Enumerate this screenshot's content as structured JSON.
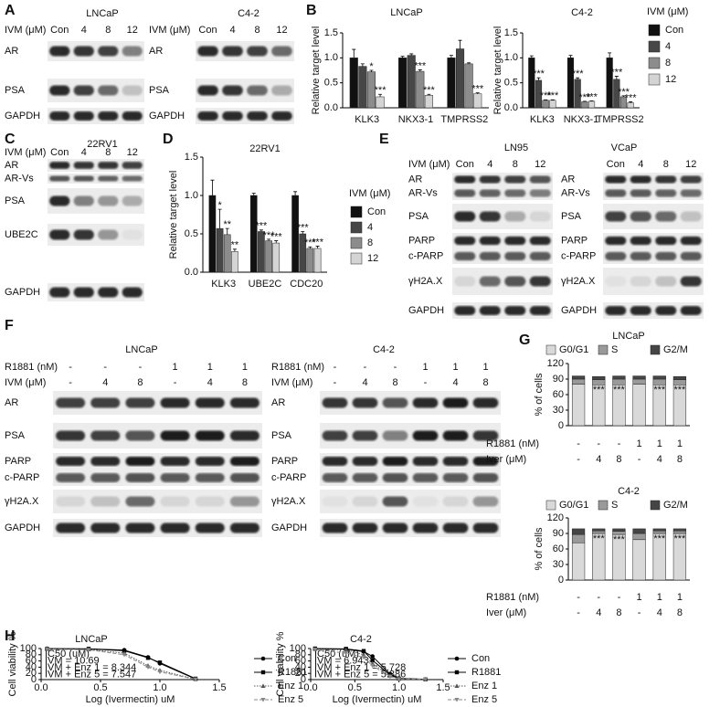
{
  "panel_labels": [
    "A",
    "B",
    "C",
    "D",
    "E",
    "F",
    "G",
    "H"
  ],
  "blots": [
    {
      "title": "LNCaP",
      "conditions": [
        {
          "label": "IVM (μM)",
          "values": [
            "Con",
            "4",
            "8",
            "12"
          ]
        }
      ],
      "bands": [
        [
          "AR"
        ],
        [
          "PSA"
        ],
        [
          "GAPDH"
        ]
      ]
    },
    {
      "title": "C4-2",
      "conditions": [
        {
          "label": "IVM (μM)",
          "values": [
            "Con",
            "4",
            "8",
            "12"
          ]
        }
      ],
      "bands": [
        [
          "AR"
        ],
        [
          "PSA"
        ],
        [
          "GAPDH"
        ]
      ]
    },
    {
      "title": "22RV1",
      "conditions": [
        {
          "label": "IVM (μM)",
          "values": [
            "Con",
            "4",
            "8",
            "12"
          ]
        }
      ],
      "bands": [
        [
          "AR"
        ],
        [
          "AR-Vs"
        ],
        [
          "PSA"
        ],
        [
          "UBE2C"
        ],
        [
          "GAPDH"
        ]
      ]
    },
    {
      "title": "LN95",
      "conditions": [
        {
          "label": "IVM (μM)",
          "values": [
            "Con",
            "4",
            "8",
            "12"
          ]
        }
      ],
      "bands": [
        [
          "AR",
          "AR-Vs"
        ],
        [
          "PSA"
        ],
        [
          "PARP",
          "c-PARP"
        ],
        [
          "γH2A.X"
        ],
        [
          "GAPDH"
        ]
      ]
    },
    {
      "title": "VCaP",
      "conditions": [
        {
          "values": [
            "Con",
            "4",
            "8",
            "12"
          ]
        }
      ],
      "bands": [
        [
          "AR",
          "AR-Vs"
        ],
        [
          "PSA"
        ],
        [
          "PARP",
          "c-PARP"
        ],
        [
          "γH2A.X"
        ],
        [
          "GAPDH"
        ]
      ]
    },
    {
      "title": "LNCaP",
      "conditions": [
        {
          "label": "R1881 (nM)",
          "values": [
            "-",
            "-",
            "-",
            "1",
            "1",
            "1"
          ]
        },
        {
          "label": "IVM (μM)",
          "values": [
            "-",
            "4",
            "8",
            "-",
            "4",
            "8"
          ]
        }
      ],
      "bands": [
        [
          "AR"
        ],
        [
          "PSA"
        ],
        [
          "PARP",
          "c-PARP"
        ],
        [
          "γH2A.X"
        ],
        [
          "GAPDH"
        ]
      ]
    },
    {
      "title": "C4-2",
      "conditions": [
        {
          "label": "R1881 (nM)",
          "values": [
            "-",
            "-",
            "-",
            "1",
            "1",
            "1"
          ]
        },
        {
          "label": "IVM (μM)",
          "values": [
            "-",
            "4",
            "8",
            "-",
            "4",
            "8"
          ]
        }
      ],
      "bands": [
        [
          "AR"
        ],
        [
          "PSA"
        ],
        [
          "PARP",
          "c-PARP"
        ],
        [
          "γH2A.X"
        ],
        [
          "GAPDH"
        ]
      ]
    }
  ],
  "chart_data": [
    {
      "type": "bar",
      "title": "LNCaP",
      "ylabel": "Relative target level",
      "categories": [
        "KLK3",
        "NKX3-1",
        "TMPRSS2"
      ],
      "ylim": [
        0,
        1.5
      ],
      "yticks": [
        {
          "value": 0,
          "label": "0.0"
        },
        0.5,
        {
          "value": 1,
          "label": "1.0"
        },
        1.5
      ],
      "legend": false,
      "series": [
        {
          "name": "Con",
          "color": "#111111",
          "values": [
            1.0,
            1.0,
            1.0
          ],
          "errors": [
            0.17,
            0.03,
            0.05
          ]
        },
        {
          "name": "4",
          "color": "#474747",
          "values": [
            0.83,
            1.05,
            1.18
          ],
          "errors": [
            0.05,
            0.03,
            0.17
          ]
        },
        {
          "name": "8",
          "color": "#8c8c8c",
          "values": [
            0.72,
            0.73,
            0.88
          ],
          "errors": [
            0.03,
            0.03,
            0.02
          ],
          "stars": [
            "*",
            "***",
            null
          ]
        },
        {
          "name": "12",
          "color": "#d4d4d4",
          "values": [
            0.22,
            0.25,
            0.28
          ],
          "errors": [
            0.05,
            0.02,
            0.02
          ],
          "stars": [
            "***",
            "***",
            "***"
          ]
        }
      ]
    },
    {
      "type": "bar",
      "title": "C4-2",
      "ylabel": "Relative target level",
      "categories": [
        "KLK3",
        "NKX3-1",
        "TMPRSS2"
      ],
      "ylim": [
        0,
        1.5
      ],
      "yticks": [
        {
          "value": 0,
          "label": "0.0"
        },
        0.5,
        {
          "value": 1,
          "label": "1.0"
        },
        1.5
      ],
      "legend": true,
      "legend_title": "IVM (μM)",
      "series": [
        {
          "name": "Con",
          "color": "#111111",
          "values": [
            1.0,
            1.0,
            1.0
          ],
          "errors": [
            0.04,
            0.05,
            0.1
          ]
        },
        {
          "name": "4",
          "color": "#474747",
          "values": [
            0.55,
            0.57,
            0.57
          ],
          "errors": [
            0.05,
            0.03,
            0.06
          ],
          "stars": [
            "***",
            "***",
            "***"
          ]
        },
        {
          "name": "8",
          "color": "#8c8c8c",
          "values": [
            0.15,
            0.12,
            0.22
          ],
          "errors": [
            0.01,
            0.01,
            0.02
          ],
          "stars": [
            "***",
            "***",
            "***"
          ]
        },
        {
          "name": "12",
          "color": "#d4d4d4",
          "values": [
            0.15,
            0.13,
            0.1
          ],
          "errors": [
            0.01,
            0.01,
            0.02
          ],
          "stars": [
            "***",
            "***",
            "***"
          ]
        }
      ]
    },
    {
      "type": "bar",
      "title": "22RV1",
      "ylabel": "Relative target level",
      "categories": [
        "KLK3",
        "UBE2C",
        "CDC20"
      ],
      "ylim": [
        0,
        1.5
      ],
      "yticks": [
        {
          "value": 0,
          "label": "0.0"
        },
        0.5,
        {
          "value": 1,
          "label": "1.0"
        },
        1.5
      ],
      "legend": true,
      "legend_title": "IVM (μM)",
      "series": [
        {
          "name": "Con",
          "color": "#111111",
          "values": [
            1.0,
            1.0,
            1.0
          ],
          "errors": [
            0.2,
            0.03,
            0.05
          ]
        },
        {
          "name": "4",
          "color": "#474747",
          "values": [
            0.57,
            0.53,
            0.5
          ],
          "errors": [
            0.25,
            0.02,
            0.03
          ],
          "stars": [
            "*",
            "***",
            "***"
          ]
        },
        {
          "name": "8",
          "color": "#8c8c8c",
          "values": [
            0.49,
            0.41,
            0.31
          ],
          "errors": [
            0.08,
            0.02,
            0.02
          ],
          "stars": [
            "**",
            "***",
            "***"
          ]
        },
        {
          "name": "12",
          "color": "#d4d4d4",
          "values": [
            0.27,
            0.38,
            0.31
          ],
          "errors": [
            0.03,
            0.03,
            0.03
          ],
          "stars": [
            "**",
            "***",
            "***"
          ]
        }
      ]
    },
    {
      "type": "stacked",
      "title": "LNCaP",
      "ylabel": "% of cells",
      "ylim": [
        0,
        120
      ],
      "yticks": [
        0,
        30,
        60,
        90,
        120
      ],
      "legend": true,
      "conditions": [
        {
          "label": "R1881 (nM)",
          "values": [
            "-",
            "-",
            "-",
            "1",
            "1",
            "1"
          ]
        },
        {
          "label": "Iver (μM)",
          "values": [
            "-",
            "4",
            "8",
            "-",
            "4",
            "8"
          ]
        }
      ],
      "bar_labels": [
        null,
        "***",
        "***",
        null,
        "***",
        "***"
      ],
      "series": [
        {
          "name": "G0/G1",
          "color": "#d9d9d9",
          "values": [
            80,
            79,
            79,
            80,
            79,
            79
          ]
        },
        {
          "name": "S",
          "color": "#9a9a9a",
          "values": [
            10,
            10,
            11,
            10,
            11,
            10
          ]
        },
        {
          "name": "G2/M",
          "color": "#454545",
          "values": [
            6,
            6,
            6,
            6,
            6,
            6
          ]
        }
      ]
    },
    {
      "type": "stacked",
      "title": "C4-2",
      "ylabel": "% of cells",
      "ylim": [
        0,
        120
      ],
      "yticks": [
        0,
        30,
        60,
        90,
        120
      ],
      "legend": true,
      "conditions": [
        {
          "label": "R1881 (nM)",
          "values": [
            "-",
            "-",
            "-",
            "1",
            "1",
            "1"
          ]
        },
        {
          "label": "Iver (μM)",
          "values": [
            "-",
            "4",
            "8",
            "-",
            "4",
            "8"
          ]
        }
      ],
      "bar_labels": [
        null,
        "***",
        "***",
        null,
        "***",
        "***"
      ],
      "series": [
        {
          "name": "G0/G1",
          "color": "#d9d9d9",
          "values": [
            72,
            90,
            88,
            78,
            90,
            90
          ]
        },
        {
          "name": "S",
          "color": "#9a9a9a",
          "values": [
            16,
            5,
            6,
            12,
            5,
            5
          ]
        },
        {
          "name": "G2/M",
          "color": "#454545",
          "values": [
            11,
            4,
            5,
            9,
            4,
            4
          ]
        }
      ]
    },
    {
      "type": "line",
      "title": "LNCaP",
      "ylabel": "Cell viability %",
      "xlabel": "Log (Ivermectin) uM",
      "x": [
        0.05,
        0.4,
        0.7,
        0.9,
        1.0,
        1.3
      ],
      "xlim": [
        0,
        1.5
      ],
      "xticks": [
        {
          "value": 0,
          "label": "0.0"
        },
        0.5,
        {
          "value": 1,
          "label": "1.0"
        },
        1.5
      ],
      "ylim": [
        0,
        100
      ],
      "yticks": [
        0,
        20,
        40,
        60,
        80,
        100
      ],
      "legend": true,
      "annotations": [
        "IC50 (uM)",
        "IVM = 10.69",
        "IVM + Enz 1 = 8.344",
        "IVM + Enz 5 = 7.547"
      ],
      "series": [
        {
          "name": "Con",
          "color": "#000000",
          "dash": "solid",
          "marker": "circle",
          "values": [
            100,
            99,
            95,
            72,
            52,
            2
          ]
        },
        {
          "name": "R1881",
          "color": "#000000",
          "dash": "solid",
          "marker": "square",
          "values": [
            99,
            99,
            93,
            70,
            55,
            3
          ]
        },
        {
          "name": "Enz 1",
          "color": "#555555",
          "dash": "dotted",
          "marker": "triangle",
          "values": [
            98,
            97,
            85,
            45,
            30,
            1
          ]
        },
        {
          "name": "Enz 5",
          "color": "#888888",
          "dash": "dashed",
          "marker": "triangle-down",
          "values": [
            98,
            96,
            80,
            40,
            25,
            1
          ]
        }
      ]
    },
    {
      "type": "line",
      "title": "C4-2",
      "ylabel": "Cell viability %",
      "xlabel": "Log (Ivermectin) uM",
      "x": [
        0.05,
        0.4,
        0.6,
        0.7,
        0.9,
        1.0,
        1.3
      ],
      "xlim": [
        0,
        1.5
      ],
      "xticks": [
        {
          "value": 0,
          "label": "0.0"
        },
        0.5,
        {
          "value": 1,
          "label": "1.0"
        },
        1.5
      ],
      "ylim": [
        0,
        100
      ],
      "yticks": [
        0,
        20,
        40,
        60,
        80,
        100
      ],
      "legend": true,
      "annotations": [
        "IC50 (uM)",
        "IVM = 6.943",
        "IVM + Enz 1 = 5.728",
        "IVM + Enz 5 = 5.386"
      ],
      "series": [
        {
          "name": "Con",
          "color": "#000000",
          "dash": "solid",
          "marker": "circle",
          "values": [
            99,
            98,
            90,
            75,
            18,
            4,
            1
          ]
        },
        {
          "name": "R1881",
          "color": "#000000",
          "dash": "solid",
          "marker": "square",
          "values": [
            100,
            99,
            92,
            62,
            15,
            3,
            1
          ]
        },
        {
          "name": "Enz 1",
          "color": "#555555",
          "dash": "dotted",
          "marker": "triangle",
          "values": [
            98,
            96,
            80,
            52,
            12,
            3,
            1
          ]
        },
        {
          "name": "Enz 5",
          "color": "#888888",
          "dash": "dashed",
          "marker": "triangle-down",
          "values": [
            97,
            85,
            72,
            45,
            10,
            2,
            1
          ]
        }
      ]
    }
  ]
}
